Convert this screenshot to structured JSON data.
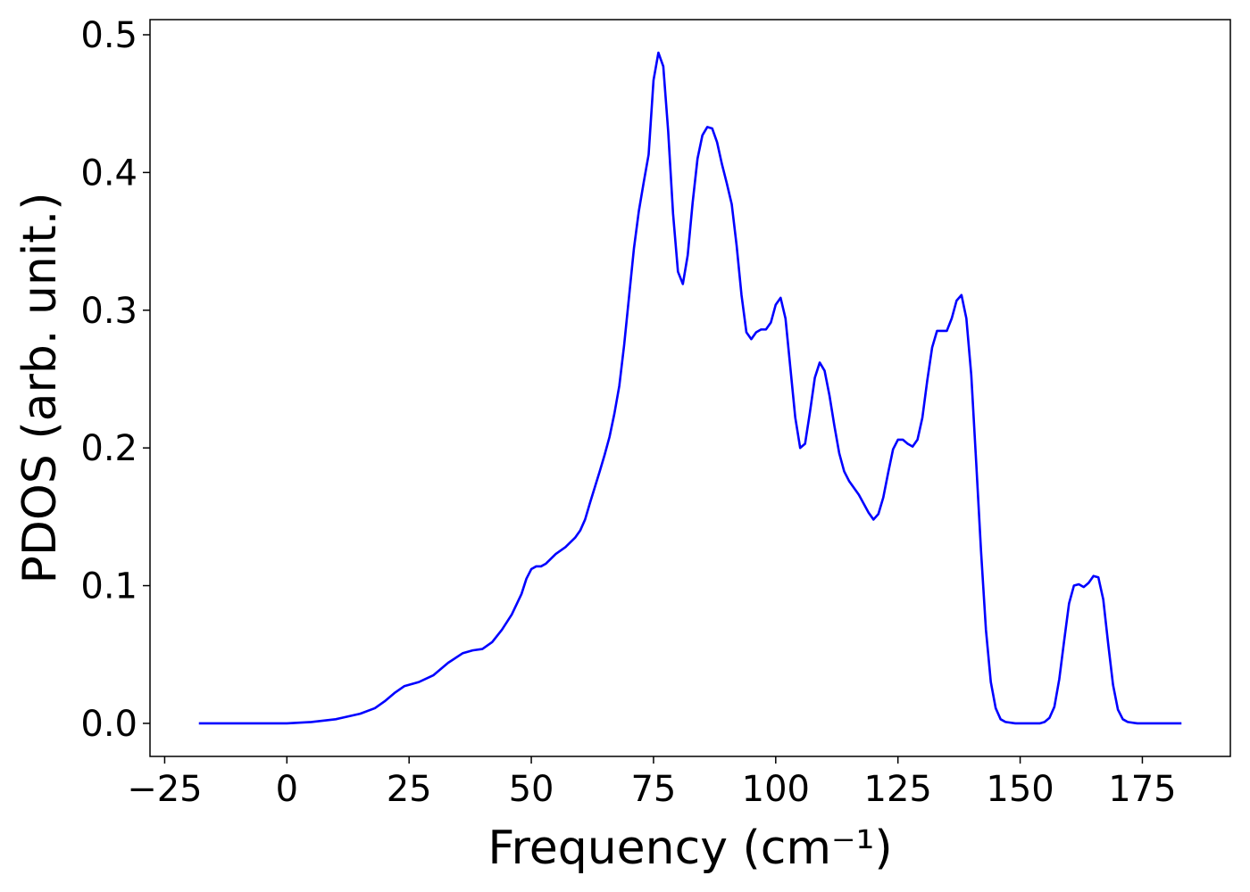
{
  "chart_data": {
    "type": "line",
    "x_label": "Frequency (cm⁻¹)",
    "y_label": "PDOS (arb. unit.)",
    "xlim": [
      -28,
      193
    ],
    "ylim": [
      -0.024,
      0.511
    ],
    "xticks": [
      {
        "value": -25,
        "label": "−25"
      },
      0,
      25,
      50,
      75,
      100,
      125,
      150,
      175
    ],
    "yticks": [
      {
        "value": 0,
        "label": "0.0"
      },
      0.1,
      0.2,
      0.3,
      0.4,
      0.5
    ],
    "grid": false,
    "series": [
      {
        "color": "#0000ff",
        "x": [
          -18,
          0,
          5,
          10,
          15,
          18,
          20,
          22,
          24,
          27,
          30,
          33,
          36,
          38,
          40,
          42,
          44,
          46,
          48,
          49,
          50,
          51,
          52,
          53,
          55,
          57,
          59,
          60,
          61,
          62,
          64,
          65,
          66,
          67,
          68,
          69,
          70,
          71,
          72,
          73,
          74,
          75,
          76,
          77,
          78,
          79,
          80,
          81,
          82,
          83,
          84,
          85,
          86,
          87,
          88,
          89,
          90,
          91,
          92,
          93,
          94,
          95,
          96,
          97,
          98,
          99,
          100,
          101,
          102,
          103,
          104,
          105,
          106,
          107,
          108,
          109,
          110,
          111,
          112,
          113,
          114,
          115,
          117,
          119,
          120,
          121,
          122,
          123,
          124,
          125,
          126,
          127,
          128,
          129,
          130,
          131,
          132,
          133,
          135,
          136,
          137,
          138,
          139,
          140,
          141,
          142,
          143,
          144,
          145,
          146,
          147,
          149,
          154,
          155,
          156,
          157,
          158,
          159,
          160,
          161,
          162,
          163,
          164,
          165,
          166,
          167,
          168,
          169,
          170,
          171,
          172,
          174,
          183
        ],
        "values": [
          0,
          0,
          0.001,
          0.003,
          0.007,
          0.011,
          0.016,
          0.022,
          0.027,
          0.03,
          0.035,
          0.044,
          0.051,
          0.053,
          0.054,
          0.059,
          0.068,
          0.079,
          0.094,
          0.105,
          0.112,
          0.114,
          0.114,
          0.116,
          0.123,
          0.128,
          0.135,
          0.14,
          0.148,
          0.16,
          0.183,
          0.195,
          0.208,
          0.225,
          0.245,
          0.275,
          0.31,
          0.345,
          0.372,
          0.393,
          0.413,
          0.467,
          0.487,
          0.477,
          0.43,
          0.37,
          0.328,
          0.319,
          0.34,
          0.378,
          0.41,
          0.427,
          0.433,
          0.432,
          0.422,
          0.406,
          0.392,
          0.377,
          0.347,
          0.311,
          0.284,
          0.279,
          0.284,
          0.286,
          0.286,
          0.291,
          0.304,
          0.309,
          0.294,
          0.258,
          0.222,
          0.2,
          0.203,
          0.226,
          0.251,
          0.262,
          0.256,
          0.238,
          0.216,
          0.196,
          0.183,
          0.176,
          0.166,
          0.153,
          0.148,
          0.152,
          0.164,
          0.182,
          0.199,
          0.206,
          0.206,
          0.203,
          0.201,
          0.206,
          0.222,
          0.249,
          0.273,
          0.285,
          0.285,
          0.294,
          0.307,
          0.311,
          0.294,
          0.253,
          0.19,
          0.125,
          0.068,
          0.03,
          0.011,
          0.003,
          0.001,
          0,
          0,
          0.001,
          0.004,
          0.012,
          0.032,
          0.06,
          0.087,
          0.1,
          0.101,
          0.099,
          0.102,
          0.107,
          0.106,
          0.09,
          0.058,
          0.028,
          0.01,
          0.003,
          0.001,
          0,
          0
        ]
      }
    ]
  }
}
